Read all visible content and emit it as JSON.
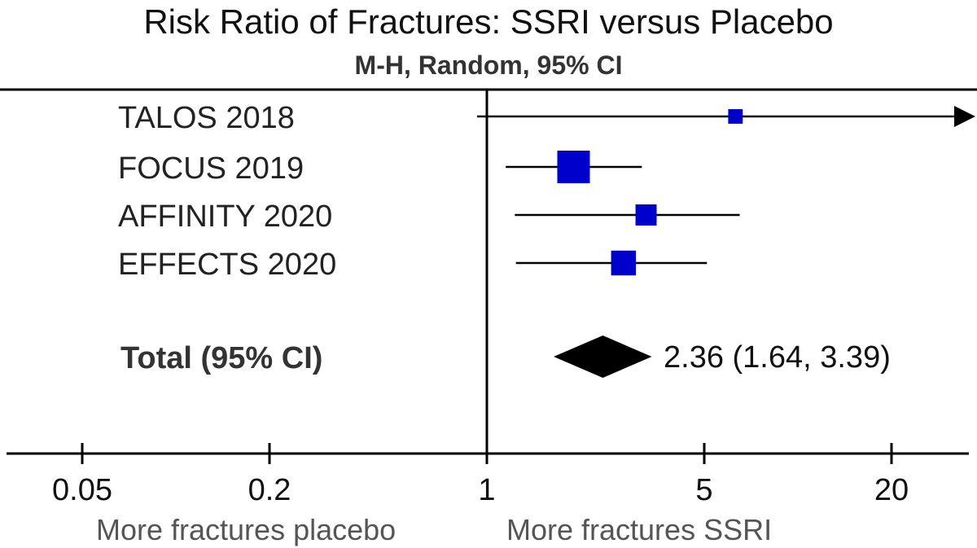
{
  "chart_data": {
    "type": "forest",
    "title": "Risk Ratio of Fractures: SSRI versus Placebo",
    "subtitle": "M-H, Random, 95% CI",
    "scale": "log",
    "xlim": [
      0.05,
      27
    ],
    "null_value": 1,
    "x_ticks": [
      {
        "value": 0.05,
        "label": "0.05"
      },
      {
        "value": 0.2,
        "label": "0.2"
      },
      {
        "value": 1,
        "label": "1"
      },
      {
        "value": 5,
        "label": "5"
      },
      {
        "value": 20,
        "label": "20"
      }
    ],
    "studies": [
      {
        "name": "TALOS 2018",
        "rr": 6.3,
        "lower": 0.93,
        "upper": 27,
        "upper_truncated": true,
        "weight": 0.2
      },
      {
        "name": "FOCUS 2019",
        "rr": 1.9,
        "lower": 1.15,
        "upper": 3.15,
        "weight": 1.0
      },
      {
        "name": "AFFINITY 2020",
        "rr": 3.25,
        "lower": 1.23,
        "upper": 6.5,
        "weight": 0.42
      },
      {
        "name": "EFFECTS 2020",
        "rr": 2.75,
        "lower": 1.24,
        "upper": 5.1,
        "weight": 0.58
      }
    ],
    "total": {
      "label": "Total (95% CI)",
      "rr": 2.36,
      "lower": 1.64,
      "upper": 3.39,
      "value_text": "2.36 (1.64, 3.39)"
    },
    "direction_labels": {
      "left": "More fractures placebo",
      "right": "More fractures SSRI"
    },
    "colors": {
      "study_marker": "#0000cc",
      "total_marker": "#000000",
      "lines": "#000000"
    }
  }
}
